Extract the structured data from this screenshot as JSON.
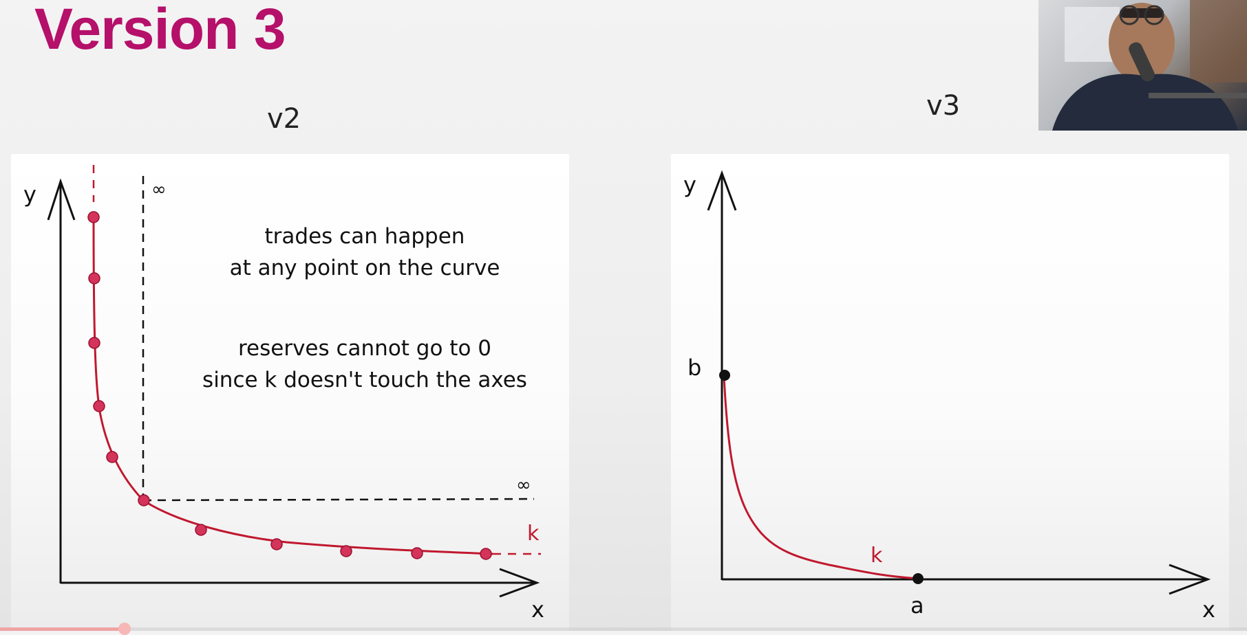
{
  "slide": {
    "title": "Version 3",
    "title_color": "#b5106a"
  },
  "left_panel": {
    "label": "v2",
    "y_axis_label": "y",
    "x_axis_label": "x",
    "curve_label": "k",
    "infinity_top": "∞",
    "infinity_right": "∞",
    "note_line_1": "trades can happen",
    "note_line_2": "at any point on the curve",
    "note_line_3": "reserves cannot go to 0",
    "note_line_4": "since k doesn't touch the axes",
    "curve_color": "#c0182e",
    "point_color": "#d4335a"
  },
  "right_panel": {
    "label": "v3",
    "y_axis_label": "y",
    "x_axis_label": "x",
    "curve_label": "k",
    "point_b_label": "b",
    "point_a_label": "a",
    "curve_color": "#c0182e"
  },
  "webcam": {
    "icon": "presenter-video-icon"
  },
  "progress": {
    "played_fraction": 0.1
  }
}
